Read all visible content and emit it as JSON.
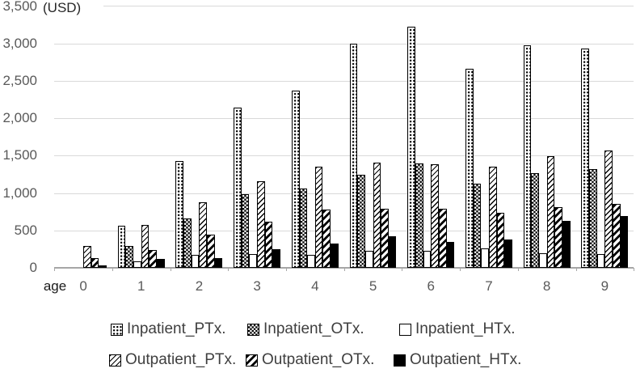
{
  "chart_data": {
    "type": "bar",
    "title": "",
    "unit_label": "(USD)",
    "xlabel": "age",
    "ylabel": "",
    "ylim": [
      0,
      3500
    ],
    "ytick_interval": 500,
    "grid": true,
    "legend_position": "bottom",
    "ytick_labels": [
      "0",
      "500",
      "1,000",
      "1,500",
      "2,000",
      "2,500",
      "3,000",
      "3,500"
    ],
    "categories": [
      "0",
      "1",
      "2",
      "3",
      "4",
      "5",
      "6",
      "7",
      "8",
      "9"
    ],
    "series": [
      {
        "name": "Inpatient_PTx.",
        "pattern": "dotted-grid",
        "values": [
          0,
          560,
          1430,
          2140,
          2370,
          3000,
          3220,
          2660,
          2970,
          2930
        ]
      },
      {
        "name": "Inpatient_OTx.",
        "pattern": "checker",
        "values": [
          0,
          295,
          660,
          980,
          1065,
          1240,
          1390,
          1120,
          1265,
          1315
        ]
      },
      {
        "name": "Inpatient_HTx.",
        "pattern": "white",
        "values": [
          0,
          85,
          175,
          185,
          170,
          230,
          225,
          255,
          190,
          180
        ]
      },
      {
        "name": "Outpatient_PTx.",
        "pattern": "hatch-light",
        "values": [
          295,
          575,
          880,
          1160,
          1355,
          1410,
          1380,
          1350,
          1490,
          1570
        ]
      },
      {
        "name": "Outpatient_OTx.",
        "pattern": "hatch-heavy",
        "values": [
          125,
          235,
          440,
          620,
          775,
          790,
          790,
          740,
          815,
          850
        ]
      },
      {
        "name": "Outpatient_HTx.",
        "pattern": "solid-black",
        "values": [
          30,
          115,
          135,
          250,
          330,
          420,
          350,
          380,
          630,
          695
        ]
      }
    ]
  },
  "colors": {
    "background": "#ffffff",
    "gridline": "#d9d9d9",
    "axis": "#a6a6a6",
    "tick_label": "#595959",
    "legend_text": "#3f3f3f",
    "bar_outline": "#000000"
  }
}
